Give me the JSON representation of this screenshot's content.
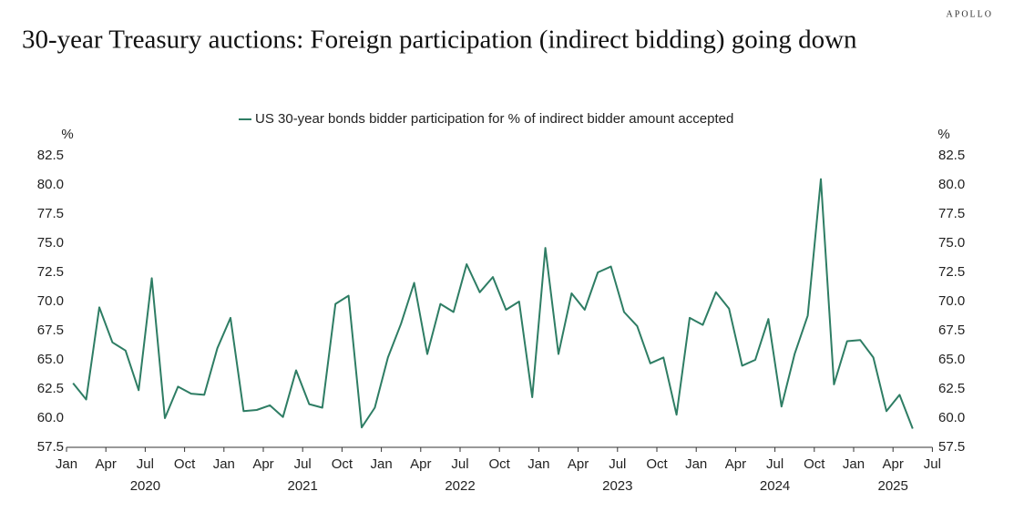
{
  "brand": "APOLLO",
  "chart_data": {
    "type": "line",
    "title": "30-year Treasury auctions: Foreign participation (indirect bidding) going down",
    "y_unit": "%",
    "y2_unit": "%",
    "x": [
      "2020-01",
      "2020-02",
      "2020-03",
      "2020-04",
      "2020-05",
      "2020-06",
      "2020-07",
      "2020-08",
      "2020-09",
      "2020-10",
      "2020-11",
      "2020-12",
      "2021-01",
      "2021-02",
      "2021-03",
      "2021-04",
      "2021-05",
      "2021-06",
      "2021-07",
      "2021-08",
      "2021-09",
      "2021-10",
      "2021-11",
      "2021-12",
      "2022-01",
      "2022-02",
      "2022-03",
      "2022-04",
      "2022-05",
      "2022-06",
      "2022-07",
      "2022-08",
      "2022-09",
      "2022-10",
      "2022-11",
      "2022-12",
      "2023-01",
      "2023-02",
      "2023-03",
      "2023-04",
      "2023-05",
      "2023-06",
      "2023-07",
      "2023-08",
      "2023-09",
      "2023-10",
      "2023-11",
      "2023-12",
      "2024-01",
      "2024-02",
      "2024-03",
      "2024-04",
      "2024-05",
      "2024-06",
      "2024-07",
      "2024-08",
      "2024-09",
      "2024-10",
      "2024-11",
      "2024-12",
      "2025-01",
      "2025-02",
      "2025-03",
      "2025-04",
      "2025-05"
    ],
    "series": [
      {
        "name": "US 30-year bonds bidder participation for % of indirect bidder amount accepted",
        "color": "#2e7d64",
        "values": [
          63.0,
          61.6,
          69.5,
          66.5,
          65.8,
          62.4,
          72.0,
          60.0,
          62.7,
          62.1,
          62.0,
          66.0,
          68.6,
          60.6,
          60.7,
          61.1,
          60.1,
          64.1,
          61.2,
          60.9,
          69.8,
          70.5,
          59.2,
          60.9,
          65.2,
          68.1,
          71.6,
          65.5,
          69.8,
          69.1,
          73.2,
          70.8,
          72.1,
          69.3,
          70.0,
          61.8,
          74.6,
          65.5,
          70.7,
          69.3,
          72.5,
          73.0,
          69.1,
          67.9,
          64.7,
          65.2,
          60.3,
          68.6,
          68.0,
          70.8,
          69.4,
          64.5,
          65.0,
          68.5,
          61.0,
          65.5,
          68.8,
          80.5,
          62.9,
          66.6,
          66.7,
          65.2,
          60.6,
          62.0,
          59.1
        ]
      }
    ],
    "xlim": [
      "2020-01",
      "2025-07"
    ],
    "xticks": [
      {
        "value": "2020-01",
        "label": "Jan"
      },
      {
        "value": "2020-04",
        "label": "Apr"
      },
      {
        "value": "2020-07",
        "label": "Jul"
      },
      {
        "value": "2020-10",
        "label": "Oct"
      },
      {
        "value": "2021-01",
        "label": "Jan"
      },
      {
        "value": "2021-04",
        "label": "Apr"
      },
      {
        "value": "2021-07",
        "label": "Jul"
      },
      {
        "value": "2021-10",
        "label": "Oct"
      },
      {
        "value": "2022-01",
        "label": "Jan"
      },
      {
        "value": "2022-04",
        "label": "Apr"
      },
      {
        "value": "2022-07",
        "label": "Jul"
      },
      {
        "value": "2022-10",
        "label": "Oct"
      },
      {
        "value": "2023-01",
        "label": "Jan"
      },
      {
        "value": "2023-04",
        "label": "Apr"
      },
      {
        "value": "2023-07",
        "label": "Jul"
      },
      {
        "value": "2023-10",
        "label": "Oct"
      },
      {
        "value": "2024-01",
        "label": "Jan"
      },
      {
        "value": "2024-04",
        "label": "Apr"
      },
      {
        "value": "2024-07",
        "label": "Jul"
      },
      {
        "value": "2024-10",
        "label": "Oct"
      },
      {
        "value": "2025-01",
        "label": "Jan"
      },
      {
        "value": "2025-04",
        "label": "Apr"
      },
      {
        "value": "2025-07",
        "label": "Jul"
      }
    ],
    "year_labels": [
      "2020",
      "2021",
      "2022",
      "2023",
      "2024",
      "2025"
    ],
    "ylim": [
      57.5,
      82.5
    ],
    "yticks": [
      57.5,
      {
        "value": 60,
        "label": "60.0"
      },
      62.5,
      {
        "value": 65,
        "label": "65.0"
      },
      67.5,
      {
        "value": 70,
        "label": "70.0"
      },
      72.5,
      {
        "value": 75,
        "label": "75.0"
      },
      77.5,
      {
        "value": 80,
        "label": "80.0"
      },
      82.5
    ],
    "y2lim": [
      57.5,
      82.5
    ],
    "y2ticks": [
      57.5,
      {
        "value": 60,
        "label": "60.0"
      },
      62.5,
      {
        "value": 65,
        "label": "65.0"
      },
      67.5,
      {
        "value": 70,
        "label": "70.0"
      },
      72.5,
      {
        "value": 75,
        "label": "75.0"
      },
      77.5,
      {
        "value": 80,
        "label": "80.0"
      },
      82.5
    ],
    "legend": "top",
    "grid": false
  }
}
